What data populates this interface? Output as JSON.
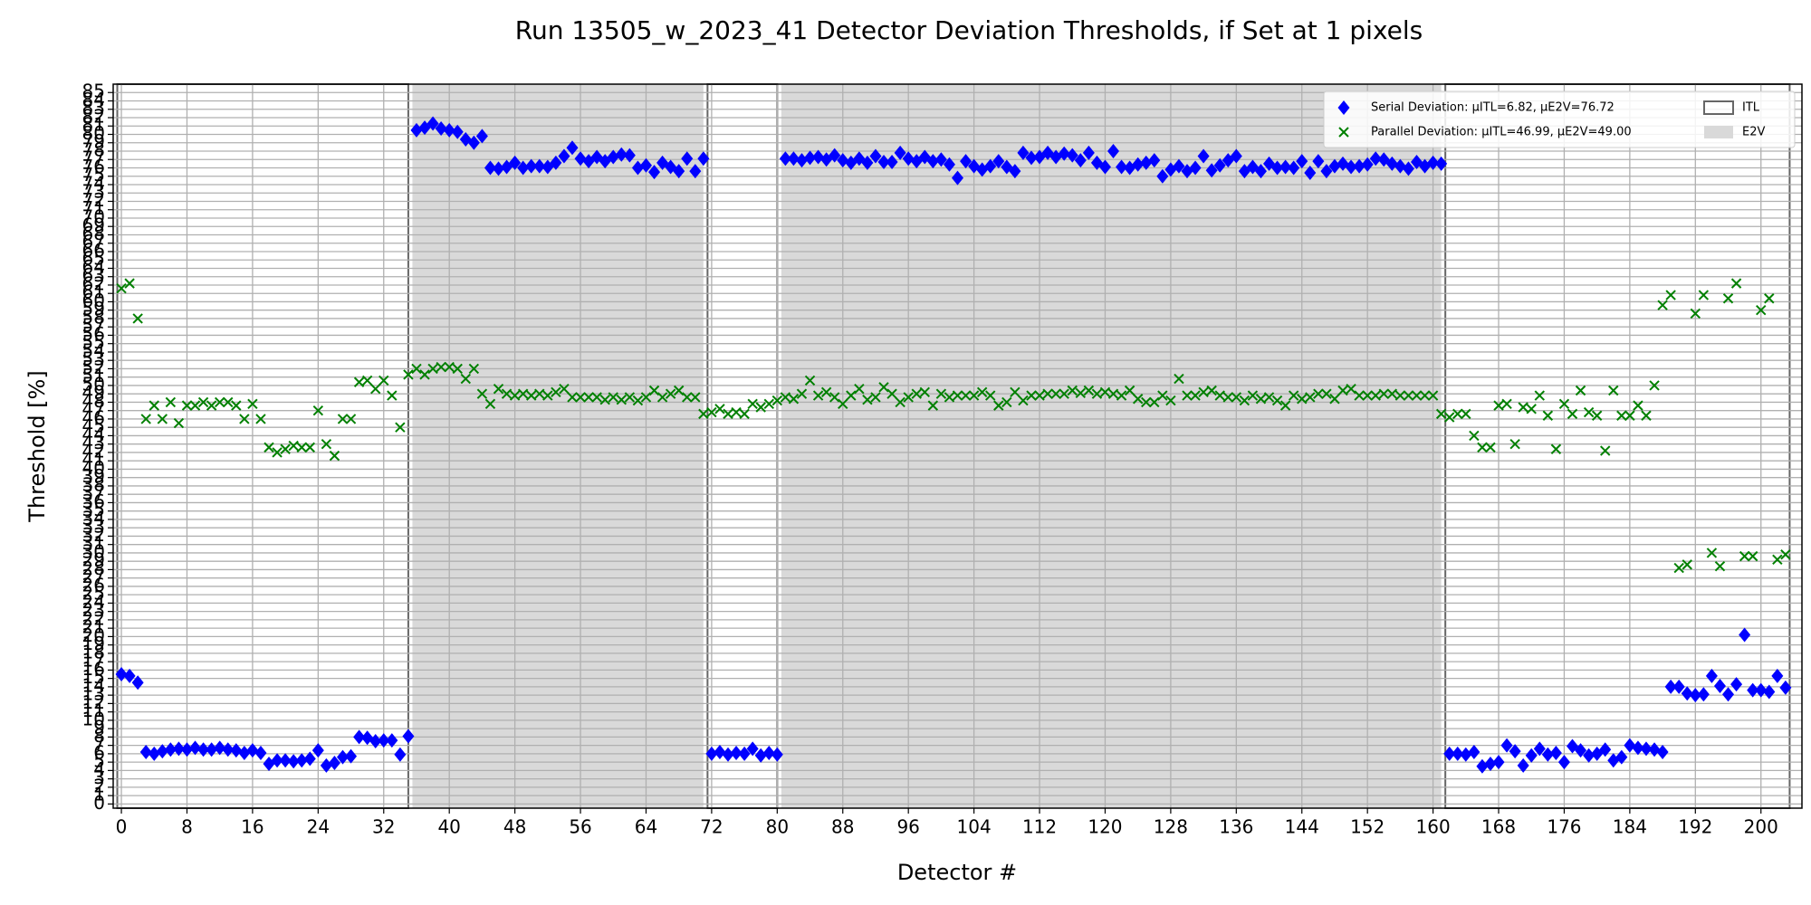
{
  "chart_data": {
    "type": "scatter",
    "title": "Run 13505_w_2023_41 Detector Deviation Thresholds, if Set at 1 pixels",
    "xlabel": "Detector #",
    "ylabel": "Threshold [%]",
    "xlim": [
      -1,
      205
    ],
    "ylim": [
      -0.5,
      86
    ],
    "xticks": [
      0,
      8,
      16,
      24,
      32,
      40,
      48,
      56,
      64,
      72,
      80,
      88,
      96,
      104,
      112,
      120,
      128,
      136,
      144,
      152,
      160,
      168,
      176,
      184,
      192,
      200
    ],
    "yticks": [
      0,
      1,
      2,
      3,
      4,
      5,
      6,
      7,
      8,
      9,
      10,
      11,
      12,
      13,
      14,
      15,
      16,
      17,
      18,
      19,
      20,
      21,
      22,
      23,
      24,
      25,
      26,
      27,
      28,
      29,
      30,
      31,
      32,
      33,
      34,
      35,
      36,
      37,
      38,
      39,
      40,
      41,
      42,
      43,
      44,
      45,
      46,
      47,
      48,
      49,
      50,
      51,
      52,
      53,
      54,
      55,
      56,
      57,
      58,
      59,
      60,
      61,
      62,
      63,
      64,
      65,
      66,
      67,
      68,
      69,
      70,
      71,
      72,
      73,
      74,
      75,
      76,
      77,
      78,
      79,
      80,
      81,
      82,
      83,
      84,
      85
    ],
    "grid": true,
    "legend": "upper right",
    "regions": [
      {
        "name": "ITL",
        "style": "outline",
        "color": "#666666",
        "spans": [
          [
            -0.5,
            35
          ],
          [
            71.5,
            80
          ],
          [
            161.5,
            203.5
          ]
        ]
      },
      {
        "name": "E2V",
        "style": "fill",
        "color": "#d9d9d9",
        "spans": [
          [
            35.5,
            71
          ],
          [
            80.5,
            161
          ]
        ]
      }
    ],
    "x": [
      0,
      1,
      2,
      3,
      4,
      5,
      6,
      7,
      8,
      9,
      10,
      11,
      12,
      13,
      14,
      15,
      16,
      17,
      18,
      19,
      20,
      21,
      22,
      23,
      24,
      25,
      26,
      27,
      28,
      29,
      30,
      31,
      32,
      33,
      34,
      35,
      36,
      37,
      38,
      39,
      40,
      41,
      42,
      43,
      44,
      45,
      46,
      47,
      48,
      49,
      50,
      51,
      52,
      53,
      54,
      55,
      56,
      57,
      58,
      59,
      60,
      61,
      62,
      63,
      64,
      65,
      66,
      67,
      68,
      69,
      70,
      71,
      72,
      73,
      74,
      75,
      76,
      77,
      78,
      79,
      80,
      81,
      82,
      83,
      84,
      85,
      86,
      87,
      88,
      89,
      90,
      91,
      92,
      93,
      94,
      95,
      96,
      97,
      98,
      99,
      100,
      101,
      102,
      103,
      104,
      105,
      106,
      107,
      108,
      109,
      110,
      111,
      112,
      113,
      114,
      115,
      116,
      117,
      118,
      119,
      120,
      121,
      122,
      123,
      124,
      125,
      126,
      127,
      128,
      129,
      130,
      131,
      132,
      133,
      134,
      135,
      136,
      137,
      138,
      139,
      140,
      141,
      142,
      143,
      144,
      145,
      146,
      147,
      148,
      149,
      150,
      151,
      152,
      153,
      154,
      155,
      156,
      157,
      158,
      159,
      160,
      161,
      162,
      163,
      164,
      165,
      166,
      167,
      168,
      169,
      170,
      171,
      172,
      173,
      174,
      175,
      176,
      177,
      178,
      179,
      180,
      181,
      182,
      183,
      184,
      185,
      186,
      187,
      188,
      189,
      190,
      191,
      192,
      193,
      194,
      195,
      196,
      197,
      198,
      199,
      200,
      201,
      202,
      203
    ],
    "series": [
      {
        "name": "Serial Deviation: μITL=6.82, μE2V=76.72",
        "color": "#0000ff",
        "marker": "diamond",
        "values": [
          15.5,
          15.3,
          14.5,
          6.2,
          6,
          6.3,
          6.5,
          6.6,
          6.5,
          6.7,
          6.5,
          6.5,
          6.7,
          6.5,
          6.4,
          6.1,
          6.4,
          6.1,
          4.8,
          5.2,
          5.2,
          5.1,
          5.2,
          5.4,
          6.4,
          4.6,
          4.9,
          5.6,
          5.7,
          8,
          7.9,
          7.5,
          7.6,
          7.6,
          5.9,
          8.1,
          80.5,
          80.8,
          81.3,
          80.7,
          80.5,
          80.3,
          79.4,
          79,
          79.8,
          76,
          75.9,
          76.1,
          76.6,
          76,
          76.2,
          76.2,
          76.1,
          76.6,
          77.4,
          78.4,
          77.1,
          76.8,
          77.3,
          76.8,
          77.3,
          77.6,
          77.5,
          76,
          76.3,
          75.5,
          76.6,
          76.1,
          75.6,
          77.1,
          75.6,
          77.1,
          6,
          6.2,
          5.9,
          6.1,
          6,
          6.6,
          5.8,
          6.1,
          5.9,
          77.1,
          77.1,
          76.9,
          77.2,
          77.3,
          77,
          77.5,
          76.9,
          76.6,
          77.1,
          76.6,
          77.4,
          76.7,
          76.7,
          77.8,
          77.1,
          76.8,
          77.3,
          76.8,
          77,
          76.4,
          74.8,
          76.8,
          76.2,
          75.8,
          76.2,
          76.8,
          76.1,
          75.6,
          77.8,
          77.2,
          77.3,
          77.8,
          77.3,
          77.7,
          77.5,
          76.9,
          77.8,
          76.6,
          76.1,
          78,
          76.1,
          76,
          76.4,
          76.6,
          76.9,
          75,
          75.8,
          76.2,
          75.6,
          76,
          77.4,
          75.7,
          76.3,
          76.9,
          77.4,
          75.6,
          76.1,
          75.6,
          76.5,
          76,
          76.1,
          76,
          76.8,
          75.4,
          76.8,
          75.6,
          76.2,
          76.5,
          76.1,
          76.2,
          76.4,
          77.1,
          77,
          76.5,
          76.2,
          75.9,
          76.7,
          76.2,
          76.6,
          76.5,
          6,
          6,
          5.9,
          6.2,
          4.5,
          4.8,
          5,
          7,
          6.3,
          4.6,
          5.8,
          6.6,
          5.9,
          6.1,
          5,
          6.9,
          6.4,
          5.8,
          6,
          6.5,
          5.2,
          5.6,
          7,
          6.7,
          6.6,
          6.5,
          6.2,
          14,
          14,
          13.2,
          13,
          13.1,
          15.3,
          14.1,
          13.1,
          14.3,
          20.2,
          13.6,
          13.6,
          13.4,
          15.3,
          13.9
        ]
      },
      {
        "name": "Parallel Deviation: μITL=46.99, μE2V=49.00",
        "color": "#008000",
        "marker": "x",
        "values": [
          61.6,
          62.2,
          58,
          46,
          47.6,
          46,
          48,
          45.5,
          47.6,
          47.6,
          48,
          47.6,
          48,
          48,
          47.6,
          46,
          47.8,
          46,
          42.6,
          42,
          42.4,
          42.8,
          42.6,
          42.6,
          47,
          43,
          41.6,
          46,
          46,
          50.4,
          50.6,
          49.6,
          50.6,
          48.8,
          45,
          51.3,
          52,
          51.3,
          52,
          52.2,
          52.2,
          52,
          50.8,
          52,
          49,
          47.8,
          49.6,
          49,
          48.8,
          49,
          48.8,
          49,
          48.8,
          49.2,
          49.6,
          48.6,
          48.6,
          48.6,
          48.6,
          48.3,
          48.6,
          48.3,
          48.6,
          48.2,
          48.6,
          49.4,
          48.6,
          49,
          49.4,
          48.6,
          48.6,
          46.6,
          46.8,
          47.2,
          46.6,
          46.8,
          46.6,
          47.8,
          47.4,
          47.8,
          48.2,
          48.6,
          48.4,
          49,
          50.6,
          48.8,
          49.2,
          48.6,
          47.8,
          48.8,
          49.6,
          48.3,
          48.6,
          49.8,
          49,
          48,
          48.6,
          49,
          49.2,
          47.6,
          49,
          48.6,
          48.8,
          48.8,
          48.8,
          49.2,
          48.8,
          47.6,
          48,
          49.2,
          48.2,
          48.8,
          48.8,
          49,
          49,
          49,
          49.4,
          49.1,
          49.4,
          49,
          49.2,
          49,
          48.8,
          49.4,
          48.4,
          48,
          48,
          48.8,
          48.2,
          50.8,
          48.8,
          48.8,
          49.2,
          49.4,
          48.8,
          48.6,
          48.6,
          48.2,
          48.8,
          48.4,
          48.6,
          48.2,
          47.6,
          48.8,
          48.4,
          48.6,
          49,
          49,
          48.4,
          49.4,
          49.6,
          48.8,
          48.8,
          48.8,
          49,
          49,
          48.8,
          48.8,
          48.8,
          48.8,
          48.8,
          46.6,
          46.2,
          46.6,
          46.6,
          44,
          42.6,
          42.6,
          47.6,
          47.8,
          43,
          47.4,
          47.2,
          48.8,
          46.4,
          42.4,
          47.8,
          46.6,
          49.4,
          46.8,
          46.4,
          42.2,
          49.4,
          46.4,
          46.4,
          47.6,
          46.4,
          50,
          59.6,
          60.8,
          28.2,
          28.6,
          58.6,
          60.8,
          30,
          28.4,
          60.4,
          62.2,
          29.6,
          29.6,
          59,
          60.4,
          29.2,
          29.8
        ]
      }
    ]
  }
}
